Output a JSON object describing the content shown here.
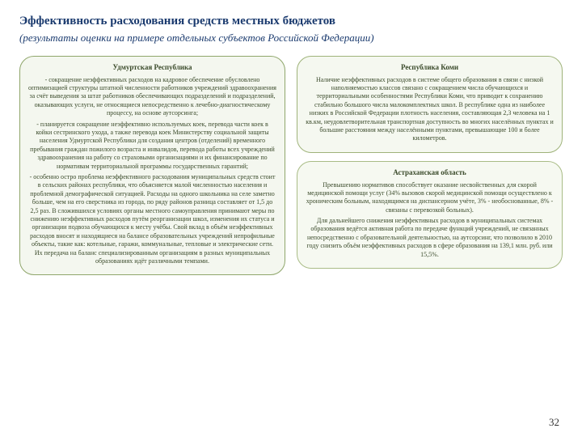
{
  "title": "Эффективность расходования средств местных бюджетов",
  "subtitle": "(результаты оценки на примере отдельных субъектов Российской Федерации)",
  "page_number": "32",
  "boxes": {
    "udmurt": {
      "title": "Удмуртская Республика",
      "border_color": "#8fa66b",
      "bg_color": "#f4f7ef",
      "p1": "- сокращение неэффективных расходов на кадровое обеспечение обусловлено оптимизацией структуры штатной численности работников учреждений здравоохранения за счёт выведения за штат работников обеспечивающих подразделений и подразделений, оказывающих услуги, не относящиеся непосредственно к лечебно-диагностическому процессу, на основе аутсорсинга;",
      "p2": "- планируется сокращение неэффективно используемых коек, перевода части коек в койки сестринского ухода, а также перевода коек Министерству социальной защиты населения Удмуртской Республики для создания центров (отделений) временного пребывания граждан пожилого возраста и инвалидов, перевода работы всех учреждений здравоохранения на работу со страховыми организациями и их финансирование по нормативам территориальной программы государственных гарантий;",
      "p3": "- особенно остро проблема неэффективного расходования муниципальных средств стоит в сельских районах республики, что объясняется малой численностью населения и проблемной демографической ситуацией. Расходы на одного школьника на селе заметно больше, чем на его сверстника из города, по ряду районов разница составляет от 1,5 до 2,5 раз. В сложившихся условиях органы местного самоуправления принимают меры по снижению неэффективных расходов путём реорганизации школ, изменения их статуса и организации подвоза обучающихся к месту учёбы. Свой вклад в объём неэффективных расходов вносят и находящиеся на балансе образовательных учреждений непрофильные объекты, такие как: котельные, гаражи, коммунальные, тепловые и электрические сети. Их передача на баланс специализированным организациям в разных муниципальных образованиях идёт различными темпами."
    },
    "komi": {
      "title": "Республика Коми",
      "border_color": "#9fb37a",
      "bg_color": "#f5f8f0",
      "p1": "Наличие неэффективных расходов в системе общего образования в связи с низкой наполняемостью классов связано с сокращением числа обучающихся и территориальными особенностями Республики Коми, что приводит к сохранению стабильно большого числа малокомплектных школ. В республике одна из наиболее низких в Российской Федерации плотность населения, составляющая 2,3 человека на 1 кв.км, неудовлетворительная транспортная доступность во многих населённых пунктах и большие расстояния между населёнными пунктами, превышающие 100 и более километров."
    },
    "astrakhan": {
      "title": "Астраханская область",
      "border_color": "#a9bc86",
      "bg_color": "#f6f9f1",
      "p1": "Превышению нормативов способствует оказание несвойственных для скорой медицинской помощи услуг (34% вызовов скорой медицинской помощи осуществлено к хроническим больным, находящимся на диспансерном учёте, 3% - необоснованные, 8% - связаны с перевозкой больных).",
      "p2": "Для дальнейшего снижения неэффективных расходов в муниципальных системах образования ведётся активная работа по передаче функций учреждений, не связанных непосредственно с образовательной деятельностью, на аутсорсинг, что позволило в 2010 году снизить объём неэффективных расходов в сфере образования на 139,1 млн. руб. или 15,5%."
    }
  }
}
